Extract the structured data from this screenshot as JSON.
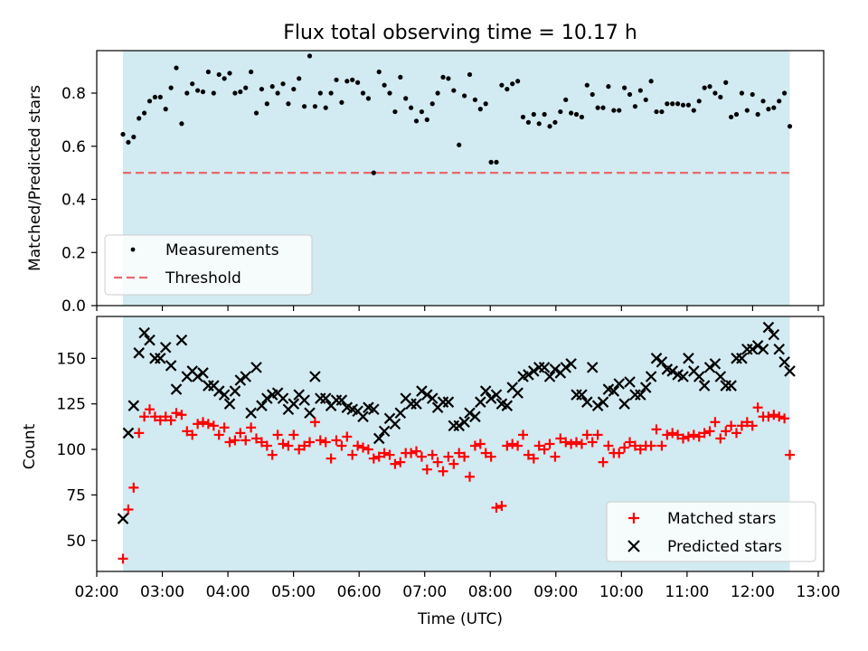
{
  "title": "Flux total observing time = 10.17 h",
  "colors": {
    "shade": "#add8e6",
    "threshold": "#e8696b",
    "measurement": "#000000",
    "matched": "#ff0000",
    "predicted": "#000000"
  },
  "chart_data": [
    {
      "type": "scatter",
      "ylabel": "Matched/Predicted stars",
      "xlabel": "",
      "xlim": [
        "02:00",
        "13:05"
      ],
      "ylim": [
        0,
        0.96
      ],
      "yticks": [
        0.0,
        0.2,
        0.4,
        0.6,
        0.8
      ],
      "ytick_labels": [
        "0.0",
        "0.2",
        "0.4",
        "0.6",
        "0.8"
      ],
      "shaded_span": [
        "02:24",
        "12:34"
      ],
      "threshold": 0.5,
      "legend": {
        "position": "lower-left",
        "entries": [
          "Measurements",
          "Threshold"
        ]
      },
      "series": [
        {
          "name": "Measurements",
          "values": [
            0.645,
            0.615,
            0.635,
            0.705,
            0.725,
            0.77,
            0.785,
            0.785,
            0.74,
            0.82,
            0.895,
            0.685,
            0.8,
            0.835,
            0.81,
            0.805,
            0.88,
            0.8,
            0.87,
            0.855,
            0.875,
            0.8,
            0.805,
            0.82,
            0.88,
            0.725,
            0.815,
            0.76,
            0.825,
            0.8,
            0.835,
            0.76,
            0.815,
            0.855,
            0.75,
            0.94,
            0.75,
            0.8,
            0.745,
            0.8,
            0.85,
            0.765,
            0.845,
            0.85,
            0.84,
            0.8,
            0.78,
            0.5,
            0.88,
            0.83,
            0.8,
            0.73,
            0.86,
            0.78,
            0.745,
            0.695,
            0.73,
            0.7,
            0.76,
            0.8,
            0.86,
            0.855,
            0.81,
            0.605,
            0.79,
            0.87,
            0.775,
            0.74,
            0.76,
            0.54,
            0.54,
            0.83,
            0.815,
            0.835,
            0.845,
            0.71,
            0.69,
            0.72,
            0.685,
            0.72,
            0.675,
            0.69,
            0.73,
            0.775,
            0.725,
            0.72,
            0.71,
            0.83,
            0.795,
            0.745,
            0.745,
            0.825,
            0.735,
            0.735,
            0.82,
            0.795,
            0.75,
            0.81,
            0.775,
            0.845,
            0.73,
            0.73,
            0.76,
            0.76,
            0.76,
            0.755,
            0.755,
            0.735,
            0.77,
            0.82,
            0.825,
            0.8,
            0.785,
            0.84,
            0.71,
            0.72,
            0.8,
            0.735,
            0.795,
            0.72,
            0.77,
            0.74,
            0.745,
            0.77,
            0.8,
            0.675
          ]
        }
      ]
    },
    {
      "type": "scatter",
      "ylabel": "Count",
      "xlabel": "Time (UTC)",
      "xlim": [
        "02:00",
        "13:05"
      ],
      "ylim": [
        33,
        173
      ],
      "yticks": [
        50,
        75,
        100,
        125,
        150
      ],
      "xticks": [
        "02:00",
        "03:00",
        "04:00",
        "05:00",
        "06:00",
        "07:00",
        "08:00",
        "09:00",
        "10:00",
        "11:00",
        "12:00",
        "13:00"
      ],
      "shaded_span": [
        "02:24",
        "12:34"
      ],
      "legend": {
        "position": "lower-right",
        "entries": [
          "Matched stars",
          "Predicted stars"
        ]
      },
      "series": [
        {
          "name": "Matched stars",
          "values": [
            40,
            67,
            79,
            109,
            118,
            122,
            118,
            116,
            118,
            116,
            120,
            119,
            110,
            108,
            114,
            115,
            114,
            113,
            108,
            112,
            104,
            105,
            109,
            105,
            112,
            106,
            104,
            102,
            97,
            108,
            103,
            102,
            108,
            100,
            102,
            104,
            115,
            105,
            104,
            95,
            105,
            102,
            107,
            97,
            102,
            101,
            100,
            95,
            96,
            98,
            97,
            92,
            93,
            98,
            98,
            99,
            96,
            89,
            97,
            93,
            88,
            96,
            92,
            98,
            96,
            85,
            102,
            103,
            98,
            96,
            68,
            69,
            102,
            103,
            102,
            108,
            97,
            95,
            102,
            100,
            103,
            96,
            106,
            104,
            103,
            104,
            103,
            108,
            104,
            108,
            93,
            102,
            98,
            98,
            101,
            104,
            102,
            100,
            102,
            102,
            111,
            102,
            108,
            109,
            108,
            106,
            107,
            108,
            107,
            109,
            110,
            115,
            106,
            110,
            113,
            109,
            113,
            115,
            113,
            123,
            118,
            118,
            119,
            118,
            117,
            97
          ]
        },
        {
          "name": "Predicted stars",
          "values": [
            62,
            109,
            124,
            153,
            164,
            160,
            150,
            150,
            156,
            146,
            133,
            160,
            140,
            143,
            140,
            142,
            135,
            135,
            132,
            130,
            125,
            132,
            138,
            140,
            120,
            145,
            124,
            128,
            130,
            131,
            128,
            122,
            125,
            130,
            127,
            120,
            140,
            128,
            128,
            124,
            127,
            127,
            123,
            122,
            121,
            118,
            123,
            122,
            106,
            110,
            117,
            114,
            120,
            128,
            125,
            125,
            132,
            130,
            128,
            123,
            126,
            126,
            113,
            113,
            115,
            120,
            118,
            126,
            132,
            128,
            130,
            125,
            124,
            134,
            131,
            140,
            141,
            143,
            145,
            145,
            140,
            144,
            142,
            145,
            147,
            130,
            130,
            126,
            145,
            124,
            126,
            133,
            132,
            136,
            125,
            137,
            130,
            130,
            134,
            140,
            150,
            148,
            144,
            143,
            141,
            140,
            150,
            143,
            140,
            135,
            145,
            147,
            140,
            135,
            135,
            150,
            150,
            155,
            155,
            157,
            155,
            167,
            163,
            155,
            148,
            143
          ]
        }
      ]
    }
  ]
}
